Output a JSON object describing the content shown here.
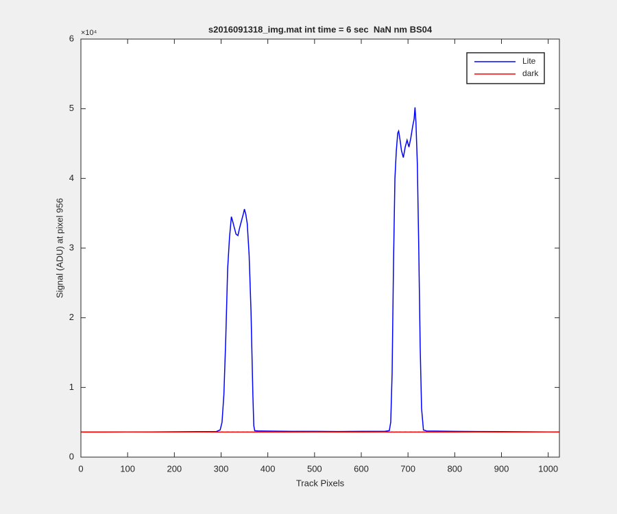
{
  "chart_data": {
    "type": "line",
    "title": "s2016091318_img.mat int time = 6 sec  NaN nm BS04",
    "xlabel": "Track Pixels",
    "ylabel": "Signal (ADU) at pixel 956",
    "y_multiplier": "×10⁴",
    "x": [
      0,
      50,
      100,
      150,
      200,
      250,
      290,
      298,
      302,
      306,
      310,
      314,
      318,
      322,
      325,
      328,
      332,
      336,
      340,
      344,
      348,
      350,
      353,
      356,
      360,
      364,
      366,
      368,
      370,
      372,
      380,
      450,
      500,
      550,
      600,
      650,
      660,
      663,
      666,
      669,
      672,
      675,
      678,
      680,
      683,
      686,
      690,
      694,
      698,
      702,
      706,
      710,
      713,
      715,
      717,
      720,
      723,
      726,
      729,
      733,
      740,
      800,
      850,
      900,
      950,
      1000,
      1024
    ],
    "series": [
      {
        "name": "Lite",
        "color": "#0000ff",
        "values": [
          3600,
          3600,
          3620,
          3620,
          3640,
          3660,
          3680,
          3900,
          5000,
          9000,
          17000,
          27000,
          31500,
          34500,
          33800,
          33000,
          32000,
          31800,
          33000,
          34000,
          35000,
          35600,
          34800,
          33500,
          29000,
          21000,
          15000,
          9000,
          4500,
          3800,
          3750,
          3700,
          3700,
          3680,
          3700,
          3700,
          3800,
          5000,
          12000,
          28000,
          40000,
          44000,
          46500,
          46800,
          45500,
          44000,
          43000,
          44500,
          45500,
          44500,
          45800,
          47500,
          48500,
          50200,
          48000,
          42000,
          30000,
          16000,
          7000,
          3900,
          3750,
          3700,
          3680,
          3660,
          3640,
          3620,
          3620
        ]
      },
      {
        "name": "dark",
        "color": "#ff0000",
        "values": [
          3600,
          3600,
          3610,
          3600,
          3600,
          3610,
          3600,
          3600,
          3610,
          3600,
          3600,
          3610,
          3600,
          3600,
          3610,
          3600,
          3600,
          3610,
          3600,
          3600,
          3610,
          3600,
          3600,
          3610,
          3600,
          3600,
          3610,
          3600,
          3600,
          3610,
          3600,
          3600,
          3610,
          3600,
          3600,
          3610,
          3600,
          3600,
          3610,
          3600,
          3600,
          3610,
          3600,
          3600,
          3610,
          3600,
          3600,
          3610,
          3600,
          3600,
          3610,
          3600,
          3600,
          3610,
          3600,
          3600,
          3610,
          3600,
          3600,
          3610,
          3600,
          3600,
          3610,
          3600,
          3600,
          3610,
          3600
        ]
      }
    ],
    "xlim": [
      0,
      1024
    ],
    "xticks": [
      0,
      100,
      200,
      300,
      400,
      500,
      600,
      700,
      800,
      900,
      1000
    ],
    "ylim": [
      0,
      60000
    ],
    "yticks": [
      {
        "value": 0,
        "label": "0"
      },
      {
        "value": 10000,
        "label": "1"
      },
      {
        "value": 20000,
        "label": "2"
      },
      {
        "value": 30000,
        "label": "3"
      },
      {
        "value": 40000,
        "label": "4"
      },
      {
        "value": 50000,
        "label": "5"
      },
      {
        "value": 60000,
        "label": "6"
      }
    ],
    "legend": "northeast",
    "grid": false
  }
}
